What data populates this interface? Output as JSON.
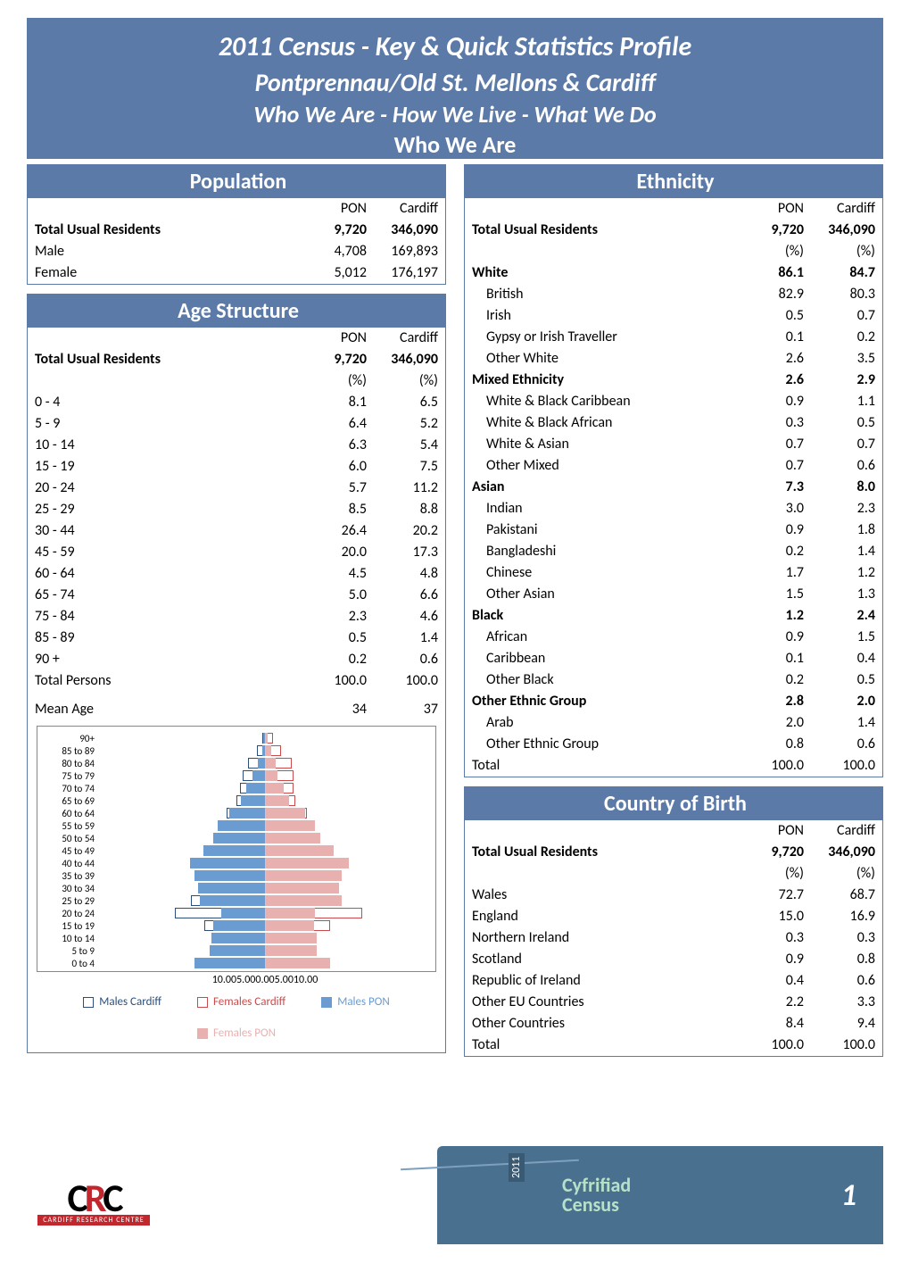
{
  "header": {
    "title1": "2011 Census - Key & Quick Statistics Profile",
    "title2": "Pontprennau/Old St. Mellons & Cardiff",
    "title3": "Who We Are - How We Live - What We Do",
    "title4": "Who We Are",
    "bg_color": "#5b7aa8",
    "text_color": "#ffffff"
  },
  "columns": {
    "col1": "PON",
    "col2": "Cardiff"
  },
  "population": {
    "title": "Population",
    "rows": [
      {
        "label": "Total Usual Residents",
        "pon": "9,720",
        "cardiff": "346,090",
        "bold": true
      },
      {
        "label": "Male",
        "pon": "4,708",
        "cardiff": "169,893"
      },
      {
        "label": "Female",
        "pon": "5,012",
        "cardiff": "176,197"
      }
    ]
  },
  "age": {
    "title": "Age Structure",
    "header_rows": [
      {
        "label": "Total Usual Residents",
        "pon": "9,720",
        "cardiff": "346,090",
        "bold": true
      },
      {
        "label": "",
        "pon": "(%)",
        "cardiff": "(%)"
      }
    ],
    "rows": [
      {
        "label": "0 - 4",
        "pon": "8.1",
        "cardiff": "6.5"
      },
      {
        "label": "5 - 9",
        "pon": "6.4",
        "cardiff": "5.2"
      },
      {
        "label": "10 - 14",
        "pon": "6.3",
        "cardiff": "5.4"
      },
      {
        "label": "15 - 19",
        "pon": "6.0",
        "cardiff": "7.5"
      },
      {
        "label": "20 - 24",
        "pon": "5.7",
        "cardiff": "11.2"
      },
      {
        "label": "25 - 29",
        "pon": "8.5",
        "cardiff": "8.8"
      },
      {
        "label": "30 - 44",
        "pon": "26.4",
        "cardiff": "20.2"
      },
      {
        "label": "45 - 59",
        "pon": "20.0",
        "cardiff": "17.3"
      },
      {
        "label": "60 - 64",
        "pon": "4.5",
        "cardiff": "4.8"
      },
      {
        "label": "65 - 74",
        "pon": "5.0",
        "cardiff": "6.6"
      },
      {
        "label": "75 - 84",
        "pon": "2.3",
        "cardiff": "4.6"
      },
      {
        "label": "85 - 89",
        "pon": "0.5",
        "cardiff": "1.4"
      },
      {
        "label": "90 +",
        "pon": "0.2",
        "cardiff": "0.6"
      },
      {
        "label": "Total Persons",
        "pon": "100.0",
        "cardiff": "100.0"
      }
    ],
    "mean_label": "Mean Age",
    "mean_pon": "34",
    "mean_cardiff": "37"
  },
  "pyramid": {
    "type": "population-pyramid",
    "half_range": 10.0,
    "axis_ticks": [
      "10.00",
      "5.00",
      "0.00",
      "5.00",
      "10.00"
    ],
    "legend": [
      {
        "label": "Males Cardiff",
        "color": "#ffffff",
        "border": "#2b4f7a"
      },
      {
        "label": "Females Cardiff",
        "color": "#ffffff",
        "border": "#c94b4b"
      },
      {
        "label": "Males PON",
        "color": "#6a9bd1",
        "border": "#6a9bd1"
      },
      {
        "label": "Females PON",
        "color": "#e9b0b0",
        "border": "#e9b0b0"
      }
    ],
    "colors": {
      "males_cardiff_border": "#2b4f7a",
      "females_cardiff_border": "#c94b4b",
      "males_pon_fill": "#6a9bd1",
      "females_pon_fill": "#e9b0b0",
      "axis_line": "#888888"
    },
    "rows": [
      {
        "label": "90+",
        "mc": 0.15,
        "mp": 0.1,
        "fc": 0.45,
        "fp": 0.15
      },
      {
        "label": "85 to 89",
        "mc": 0.45,
        "mp": 0.15,
        "fc": 0.95,
        "fp": 0.35
      },
      {
        "label": "80 to 84",
        "mc": 1.0,
        "mp": 0.4,
        "fc": 1.6,
        "fp": 0.6
      },
      {
        "label": "75 to 79",
        "mc": 1.3,
        "mp": 0.7,
        "fc": 1.7,
        "fp": 0.7
      },
      {
        "label": "70 to 74",
        "mc": 1.5,
        "mp": 1.1,
        "fc": 1.7,
        "fp": 1.1
      },
      {
        "label": "65 to 69",
        "mc": 1.7,
        "mp": 1.4,
        "fc": 1.8,
        "fp": 1.4
      },
      {
        "label": "60 to 64",
        "mc": 2.3,
        "mp": 2.1,
        "fc": 2.5,
        "fp": 2.4
      },
      {
        "label": "55 to 59",
        "mc": 2.5,
        "mp": 2.8,
        "fc": 2.6,
        "fp": 3.0
      },
      {
        "label": "50 to 54",
        "mc": 2.8,
        "mp": 3.1,
        "fc": 2.9,
        "fp": 3.3
      },
      {
        "label": "45 to 49",
        "mc": 3.1,
        "mp": 3.7,
        "fc": 3.2,
        "fp": 4.1
      },
      {
        "label": "40 to 44",
        "mc": 3.3,
        "mp": 4.5,
        "fc": 3.4,
        "fp": 5.0
      },
      {
        "label": "35 to 39",
        "mc": 3.3,
        "mp": 4.2,
        "fc": 3.3,
        "fp": 4.6
      },
      {
        "label": "30 to 34",
        "mc": 3.7,
        "mp": 4.0,
        "fc": 3.9,
        "fp": 4.4
      },
      {
        "label": "25 to 29",
        "mc": 4.4,
        "mp": 3.9,
        "fc": 4.6,
        "fp": 4.6
      },
      {
        "label": "20 to 24",
        "mc": 5.4,
        "mp": 2.6,
        "fc": 5.8,
        "fp": 3.0
      },
      {
        "label": "15 to 19",
        "mc": 3.6,
        "mp": 3.1,
        "fc": 3.9,
        "fp": 2.9
      },
      {
        "label": "10 to 14",
        "mc": 2.7,
        "mp": 3.2,
        "fc": 2.6,
        "fp": 3.1
      },
      {
        "label": "5 to 9",
        "mc": 2.6,
        "mp": 3.3,
        "fc": 2.5,
        "fp": 3.1
      },
      {
        "label": "0 to 4",
        "mc": 3.4,
        "mp": 4.2,
        "fc": 3.2,
        "fp": 3.9
      }
    ]
  },
  "ethnicity": {
    "title": "Ethnicity",
    "header_rows": [
      {
        "label": "Total Usual Residents",
        "pon": "9,720",
        "cardiff": "346,090",
        "bold": true
      },
      {
        "label": "",
        "pon": "(%)",
        "cardiff": "(%)"
      }
    ],
    "rows": [
      {
        "label": "White",
        "pon": "86.1",
        "cardiff": "84.7",
        "bold": true
      },
      {
        "label": "British",
        "pon": "82.9",
        "cardiff": "80.3",
        "indent": true
      },
      {
        "label": "Irish",
        "pon": "0.5",
        "cardiff": "0.7",
        "indent": true
      },
      {
        "label": "Gypsy or Irish Traveller",
        "pon": "0.1",
        "cardiff": "0.2",
        "indent": true
      },
      {
        "label": "Other White",
        "pon": "2.6",
        "cardiff": "3.5",
        "indent": true
      },
      {
        "label": "Mixed Ethnicity",
        "pon": "2.6",
        "cardiff": "2.9",
        "bold": true
      },
      {
        "label": "White & Black Caribbean",
        "pon": "0.9",
        "cardiff": "1.1",
        "indent": true
      },
      {
        "label": "White & Black African",
        "pon": "0.3",
        "cardiff": "0.5",
        "indent": true
      },
      {
        "label": "White & Asian",
        "pon": "0.7",
        "cardiff": "0.7",
        "indent": true
      },
      {
        "label": "Other Mixed",
        "pon": "0.7",
        "cardiff": "0.6",
        "indent": true
      },
      {
        "label": "Asian",
        "pon": "7.3",
        "cardiff": "8.0",
        "bold": true
      },
      {
        "label": "Indian",
        "pon": "3.0",
        "cardiff": "2.3",
        "indent": true
      },
      {
        "label": "Pakistani",
        "pon": "0.9",
        "cardiff": "1.8",
        "indent": true
      },
      {
        "label": "Bangladeshi",
        "pon": "0.2",
        "cardiff": "1.4",
        "indent": true
      },
      {
        "label": "Chinese",
        "pon": "1.7",
        "cardiff": "1.2",
        "indent": true
      },
      {
        "label": "Other Asian",
        "pon": "1.5",
        "cardiff": "1.3",
        "indent": true
      },
      {
        "label": "Black",
        "pon": "1.2",
        "cardiff": "2.4",
        "bold": true
      },
      {
        "label": "African",
        "pon": "0.9",
        "cardiff": "1.5",
        "indent": true
      },
      {
        "label": "Caribbean",
        "pon": "0.1",
        "cardiff": "0.4",
        "indent": true
      },
      {
        "label": "Other Black",
        "pon": "0.2",
        "cardiff": "0.5",
        "indent": true
      },
      {
        "label": "Other Ethnic Group",
        "pon": "2.8",
        "cardiff": "2.0",
        "bold": true
      },
      {
        "label": "Arab",
        "pon": "2.0",
        "cardiff": "1.4",
        "indent": true
      },
      {
        "label": "Other Ethnic Group",
        "pon": "0.8",
        "cardiff": "0.6",
        "indent": true
      },
      {
        "label": "Total",
        "pon": "100.0",
        "cardiff": "100.0"
      }
    ]
  },
  "cob": {
    "title": "Country of Birth",
    "header_rows": [
      {
        "label": "Total Usual Residents",
        "pon": "9,720",
        "cardiff": "346,090",
        "bold": true
      },
      {
        "label": "",
        "pon": "(%)",
        "cardiff": "(%)"
      }
    ],
    "rows": [
      {
        "label": "Wales",
        "pon": "72.7",
        "cardiff": "68.7"
      },
      {
        "label": "England",
        "pon": "15.0",
        "cardiff": "16.9"
      },
      {
        "label": "Northern Ireland",
        "pon": "0.3",
        "cardiff": "0.3"
      },
      {
        "label": "Scotland",
        "pon": "0.9",
        "cardiff": "0.8"
      },
      {
        "label": "Republic of Ireland",
        "pon": "0.4",
        "cardiff": "0.6"
      },
      {
        "label": "Other EU Countries",
        "pon": "2.2",
        "cardiff": "3.3"
      },
      {
        "label": "Other Countries",
        "pon": "8.4",
        "cardiff": "9.4"
      },
      {
        "label": "Total",
        "pon": "100.0",
        "cardiff": "100.0"
      }
    ]
  },
  "footer": {
    "logo_top": "CRC",
    "logo_sub": "CARDIFF RESEARCH CENTRE",
    "year": "2011",
    "cf1": "Cyfrifiad",
    "cf2": "Census",
    "page": "1",
    "bg_color": "#4a7090"
  }
}
